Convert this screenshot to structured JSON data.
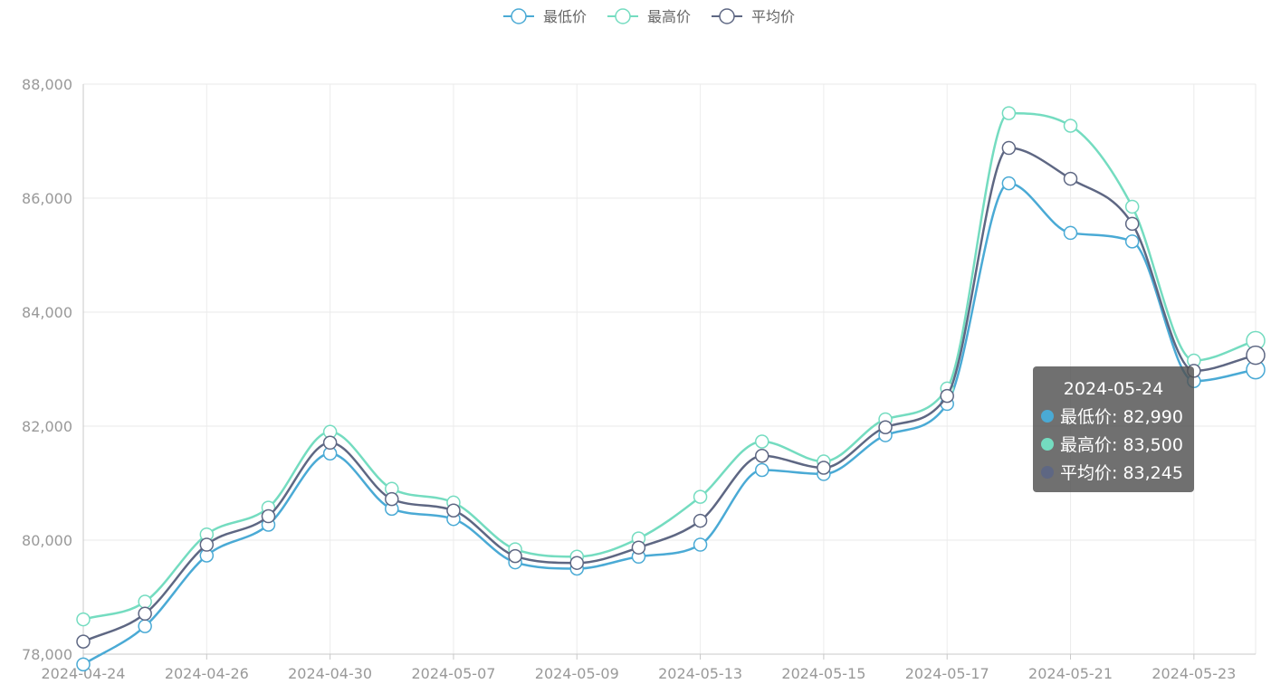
{
  "chart_data": {
    "type": "line",
    "smooth": true,
    "x": [
      "2024-04-24",
      "2024-04-25",
      "2024-04-26",
      "2024-04-29",
      "2024-04-30",
      "2024-05-06",
      "2024-05-07",
      "2024-05-08",
      "2024-05-09",
      "2024-05-10",
      "2024-05-13",
      "2024-05-14",
      "2024-05-15",
      "2024-05-16",
      "2024-05-17",
      "2024-05-20",
      "2024-05-21",
      "2024-05-22",
      "2024-05-23",
      "2024-05-24"
    ],
    "x_tick_labels": [
      "2024-04-24",
      "2024-04-26",
      "2024-04-30",
      "2024-05-07",
      "2024-05-09",
      "2024-05-13",
      "2024-05-15",
      "2024-05-17",
      "2024-05-21",
      "2024-05-23"
    ],
    "series": [
      {
        "name": "最低价",
        "color": "#4aaad5",
        "values": [
          77820,
          78490,
          79730,
          80270,
          81520,
          80550,
          80370,
          79610,
          79500,
          79710,
          79920,
          81230,
          81160,
          81840,
          82390,
          86260,
          85390,
          85240,
          82790,
          82990
        ]
      },
      {
        "name": "最高价",
        "color": "#74dcc0",
        "values": [
          78610,
          78920,
          80100,
          80570,
          81900,
          80900,
          80660,
          79840,
          79710,
          80030,
          80760,
          81730,
          81380,
          82120,
          82660,
          87490,
          87270,
          85850,
          83150,
          83500
        ]
      },
      {
        "name": "平均价",
        "color": "#5e6783",
        "values": [
          78220,
          78710,
          79920,
          80420,
          81710,
          80720,
          80520,
          79720,
          79600,
          79870,
          80340,
          81480,
          81270,
          81980,
          82530,
          86880,
          86340,
          85550,
          82970,
          83245
        ]
      }
    ],
    "ylim": [
      78000,
      88000
    ],
    "y_ticks": [
      78000,
      80000,
      82000,
      84000,
      86000,
      88000
    ],
    "y_tick_labels": [
      "78,000",
      "80,000",
      "82,000",
      "84,000",
      "86,000",
      "88,000"
    ],
    "grid": true,
    "legend": "top-center",
    "tooltip": {
      "title": "2024-05-24",
      "rows": [
        {
          "label": "最低价: 82,990",
          "color": "#4aaad5"
        },
        {
          "label": "最高价: 83,500",
          "color": "#74dcc0"
        },
        {
          "label": "平均价: 83,245",
          "color": "#5e6783"
        }
      ]
    }
  }
}
